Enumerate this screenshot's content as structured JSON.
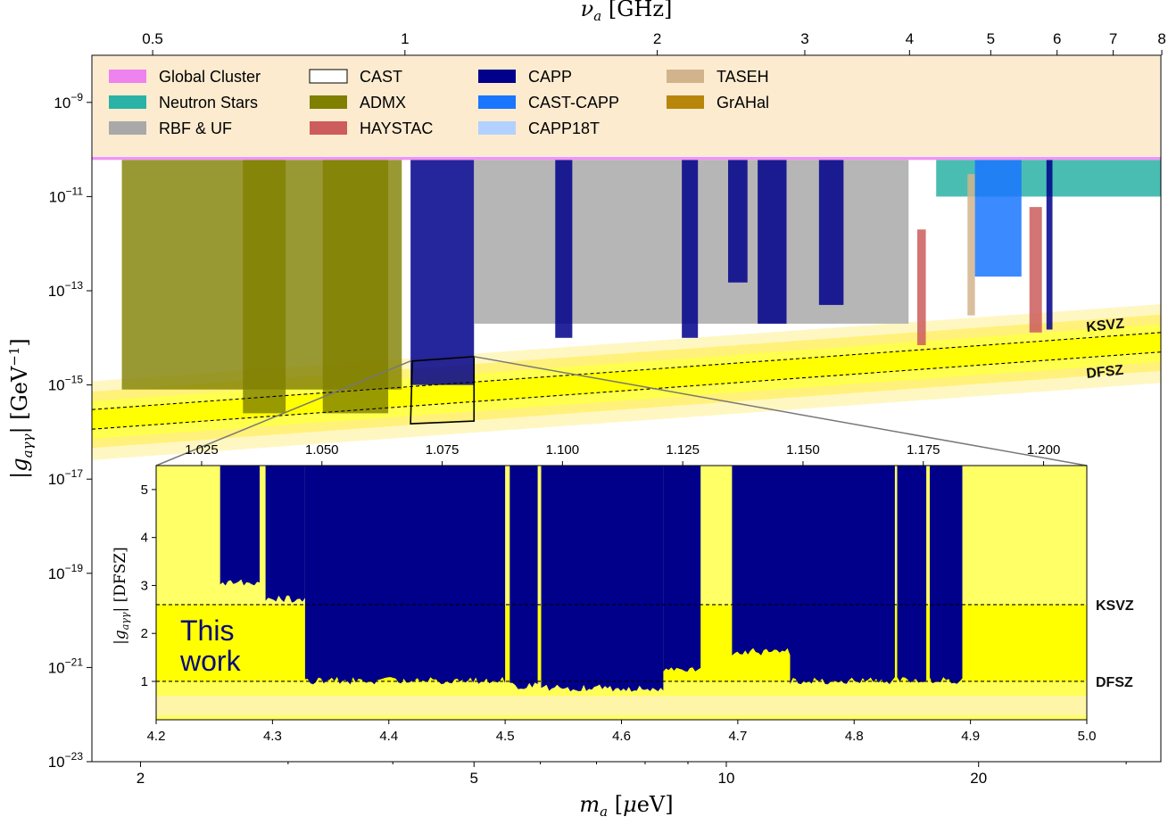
{
  "chart_data": [
    {
      "type": "area",
      "xscale": "log",
      "yscale": "log",
      "xlabel": "m_a [μeV]",
      "ylabel": "|g_aγγ| [GeV^-1]",
      "top_xlabel": "ν_a [GHz]",
      "xlim": [
        1.75,
        33
      ],
      "ylim": [
        1e-23,
        1e-08
      ],
      "xticks": [
        2,
        5,
        10,
        20
      ],
      "yticks": [
        {
          "value": 1e-23,
          "label": "10^-23"
        },
        {
          "value": 1e-21,
          "label": "10^-21"
        },
        {
          "value": 1e-19,
          "label": "10^-19"
        },
        {
          "value": 1e-17,
          "label": "10^-17"
        },
        {
          "value": 1e-15,
          "label": "10^-15"
        },
        {
          "value": 1e-13,
          "label": "10^-13"
        },
        {
          "value": 1e-11,
          "label": "10^-11"
        },
        {
          "value": 1e-09,
          "label": "10^-9"
        }
      ],
      "top_xticks": [
        0.5,
        1,
        2,
        3,
        4,
        5,
        6,
        7,
        8
      ],
      "legend_position": "top",
      "legend": [
        {
          "name": "Global Cluster",
          "color": "#ee82ee"
        },
        {
          "name": "Neutron Stars",
          "color": "#2ab2a6"
        },
        {
          "name": "RBF & UF",
          "color": "#a9a9a9"
        },
        {
          "name": "CAST",
          "color": "#ffffff",
          "outline": true
        },
        {
          "name": "ADMX",
          "color": "#7f7f00"
        },
        {
          "name": "HAYSTAC",
          "color": "#cd5c5c"
        },
        {
          "name": "CAPP",
          "color": "#00008b"
        },
        {
          "name": "CAST-CAPP",
          "color": "#1a75ff"
        },
        {
          "name": "CAPP18T",
          "color": "#b3d1ff"
        },
        {
          "name": "TASEH",
          "color": "#d2b48c"
        },
        {
          "name": "GrAHal",
          "color": "#b8860b"
        }
      ],
      "reference_lines": [
        {
          "name": "KSVZ",
          "x": [
            1.75,
            33
          ],
          "y": [
            3e-16,
            1.3e-14
          ]
        },
        {
          "name": "DFSZ",
          "x": [
            1.75,
            33
          ],
          "y": [
            1.15e-16,
            5e-15
          ]
        }
      ],
      "exclusion_regions": [
        {
          "name": "ADMX",
          "x": [
            1.9,
            4.1
          ],
          "y": [
            8e-16,
            6e-11
          ]
        },
        {
          "name": "ADMX",
          "x": [
            2.65,
            2.98
          ],
          "y": [
            2.5e-16,
            6e-11
          ]
        },
        {
          "name": "ADMX",
          "x": [
            3.3,
            3.95
          ],
          "y": [
            2.5e-16,
            6e-11
          ]
        },
        {
          "name": "CAPP",
          "x": [
            4.2,
            5.0
          ],
          "y": [
            1e-15,
            6e-11
          ]
        },
        {
          "name": "RBF & UF",
          "x": [
            5.0,
            16.5
          ],
          "y": [
            2e-14,
            6e-11
          ]
        },
        {
          "name": "CAPP",
          "x": [
            6.25,
            6.55
          ],
          "y": [
            1e-14,
            6e-11
          ]
        },
        {
          "name": "CAPP",
          "x": [
            8.85,
            9.25
          ],
          "y": [
            1e-14,
            6e-11
          ]
        },
        {
          "name": "CAPP",
          "x": [
            10.9,
            11.8
          ],
          "y": [
            2e-14,
            6e-11
          ]
        },
        {
          "name": "CAPP",
          "x": [
            12.9,
            13.8
          ],
          "y": [
            5e-14,
            6e-11
          ]
        },
        {
          "name": "CAPP",
          "x": [
            10.05,
            10.6
          ],
          "y": [
            1.5e-13,
            6e-11
          ]
        },
        {
          "name": "HAYSTAC",
          "x": [
            16.9,
            17.3
          ],
          "y": [
            7e-15,
            2e-12
          ]
        },
        {
          "name": "Neutron Stars",
          "x": [
            17.8,
            33
          ],
          "y": [
            1e-11,
            6e-11
          ]
        },
        {
          "name": "TASEH",
          "x": [
            19.4,
            19.8
          ],
          "y": [
            3e-14,
            3e-11
          ]
        },
        {
          "name": "CAST-CAPP",
          "x": [
            19.8,
            22.5
          ],
          "y": [
            2e-13,
            6e-11
          ]
        },
        {
          "name": "HAYSTAC",
          "x": [
            23.0,
            23.8
          ],
          "y": [
            1.3e-14,
            6e-12
          ]
        },
        {
          "name": "CAPP",
          "x": [
            24.1,
            24.5
          ],
          "y": [
            1.5e-14,
            6e-11
          ]
        },
        {
          "name": "Global Cluster",
          "x": [
            1.75,
            33
          ],
          "y": [
            6e-11,
            7e-11
          ]
        }
      ],
      "zoom_box": {
        "x": [
          4.2,
          5.0
        ],
        "y": [
          1.5e-16,
          4e-15
        ]
      },
      "annotations": [
        "KSVZ",
        "DFSZ"
      ]
    },
    {
      "type": "area",
      "title": "",
      "xlabel": "",
      "ylabel": "|g_aγγ| [DFSZ]",
      "xlim": [
        4.2,
        5.0
      ],
      "ylim": [
        0.2,
        5.5
      ],
      "xticks": [
        4.2,
        4.3,
        4.4,
        4.5,
        4.6,
        4.7,
        4.8,
        4.9,
        5.0
      ],
      "yticks": [
        1,
        2,
        3,
        4,
        5
      ],
      "top_xlabel": "",
      "top_xticks": [
        1.025,
        1.05,
        1.075,
        1.1,
        1.125,
        1.15,
        1.175,
        1.2
      ],
      "reference_lines": [
        {
          "name": "KSVZ",
          "y": 2.6
        },
        {
          "name": "DFSZ",
          "y": 1.0
        }
      ],
      "annotation": "This\nwork",
      "series": [
        {
          "name": "CAPP",
          "color": "#00008b",
          "segments": [
            {
              "x": [
                4.255,
                4.289
              ],
              "lower": 3.05
            },
            {
              "x": [
                4.294,
                4.328
              ],
              "lower": 2.7
            },
            {
              "x": [
                4.328,
                4.5
              ],
              "lower": 1.0
            },
            {
              "x": [
                4.504,
                4.528
              ],
              "lower": 0.9
            },
            {
              "x": [
                4.531,
                4.636
              ],
              "lower": 0.85
            },
            {
              "x": [
                4.636,
                4.668
              ],
              "lower": 1.2
            },
            {
              "x": [
                4.695,
                4.745
              ],
              "lower": 1.6
            },
            {
              "x": [
                4.745,
                4.835
              ],
              "lower": 1.0
            },
            {
              "x": [
                4.837,
                4.862
              ],
              "lower": 1.0
            },
            {
              "x": [
                4.865,
                4.893
              ],
              "lower": 1.0
            }
          ]
        }
      ]
    }
  ]
}
